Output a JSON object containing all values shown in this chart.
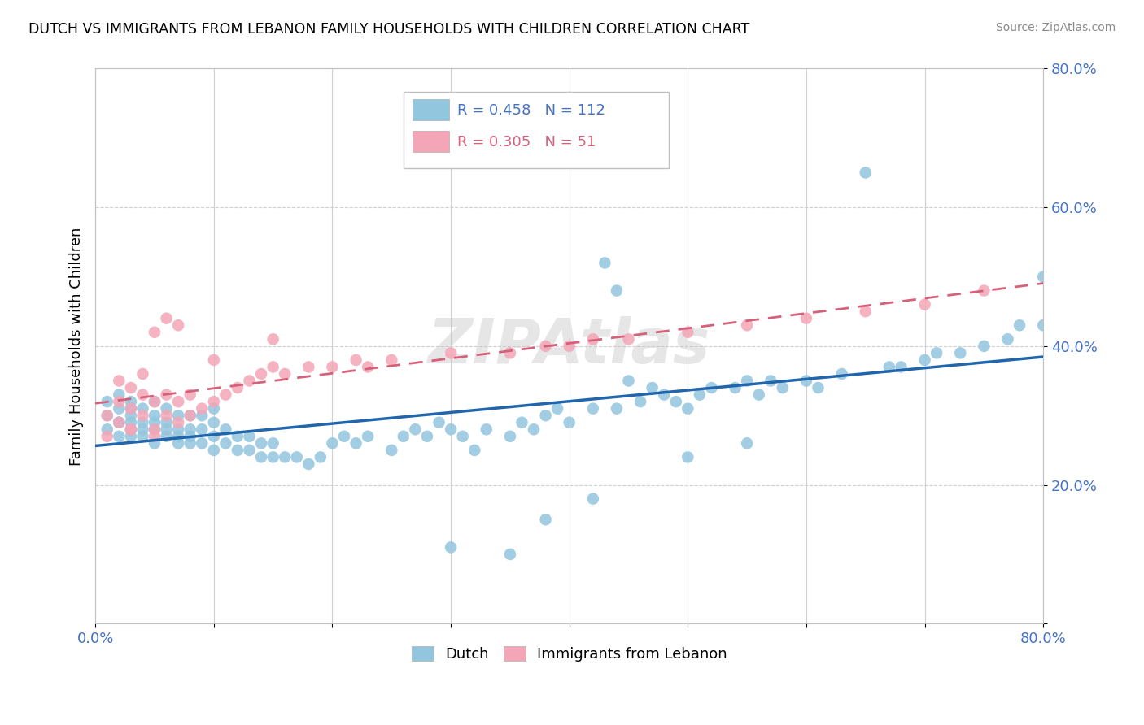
{
  "title": "DUTCH VS IMMIGRANTS FROM LEBANON FAMILY HOUSEHOLDS WITH CHILDREN CORRELATION CHART",
  "source": "Source: ZipAtlas.com",
  "ylabel": "Family Households with Children",
  "xlim": [
    0.0,
    0.8
  ],
  "ylim": [
    0.0,
    0.8
  ],
  "xtick_positions": [
    0.0,
    0.1,
    0.2,
    0.3,
    0.4,
    0.5,
    0.6,
    0.7,
    0.8
  ],
  "xtick_labels": [
    "0.0%",
    "",
    "",
    "",
    "",
    "",
    "",
    "",
    "80.0%"
  ],
  "ytick_positions": [
    0.0,
    0.2,
    0.4,
    0.6,
    0.8
  ],
  "ytick_labels": [
    "",
    "20.0%",
    "40.0%",
    "60.0%",
    "80.0%"
  ],
  "legend_dutch_R": 0.458,
  "legend_dutch_N": 112,
  "legend_lebanon_R": 0.305,
  "legend_lebanon_N": 51,
  "dutch_color": "#92c5de",
  "lebanon_color": "#f4a6b8",
  "dutch_line_color": "#2166ac",
  "lebanon_line_color": "#d6607a",
  "watermark": "ZIPAtlas",
  "dutch_x": [
    0.01,
    0.01,
    0.01,
    0.02,
    0.02,
    0.02,
    0.02,
    0.02,
    0.03,
    0.03,
    0.03,
    0.03,
    0.03,
    0.03,
    0.04,
    0.04,
    0.04,
    0.04,
    0.05,
    0.05,
    0.05,
    0.05,
    0.05,
    0.06,
    0.06,
    0.06,
    0.06,
    0.07,
    0.07,
    0.07,
    0.07,
    0.08,
    0.08,
    0.08,
    0.08,
    0.09,
    0.09,
    0.09,
    0.1,
    0.1,
    0.1,
    0.1,
    0.11,
    0.11,
    0.12,
    0.12,
    0.13,
    0.13,
    0.14,
    0.14,
    0.15,
    0.15,
    0.16,
    0.17,
    0.18,
    0.19,
    0.2,
    0.21,
    0.22,
    0.23,
    0.25,
    0.26,
    0.27,
    0.28,
    0.29,
    0.3,
    0.31,
    0.32,
    0.33,
    0.35,
    0.36,
    0.37,
    0.38,
    0.39,
    0.4,
    0.42,
    0.44,
    0.45,
    0.46,
    0.47,
    0.48,
    0.49,
    0.5,
    0.51,
    0.52,
    0.54,
    0.55,
    0.56,
    0.57,
    0.58,
    0.6,
    0.61,
    0.63,
    0.65,
    0.67,
    0.68,
    0.7,
    0.71,
    0.73,
    0.75,
    0.77,
    0.78,
    0.8,
    0.8,
    0.43,
    0.44,
    0.5,
    0.55,
    0.42,
    0.3,
    0.35,
    0.38
  ],
  "dutch_y": [
    0.28,
    0.3,
    0.32,
    0.27,
    0.29,
    0.31,
    0.33,
    0.29,
    0.27,
    0.29,
    0.31,
    0.28,
    0.3,
    0.32,
    0.27,
    0.29,
    0.31,
    0.28,
    0.26,
    0.28,
    0.3,
    0.32,
    0.29,
    0.27,
    0.29,
    0.31,
    0.28,
    0.26,
    0.28,
    0.3,
    0.27,
    0.26,
    0.28,
    0.3,
    0.27,
    0.26,
    0.28,
    0.3,
    0.25,
    0.27,
    0.29,
    0.31,
    0.26,
    0.28,
    0.25,
    0.27,
    0.25,
    0.27,
    0.24,
    0.26,
    0.24,
    0.26,
    0.24,
    0.24,
    0.23,
    0.24,
    0.26,
    0.27,
    0.26,
    0.27,
    0.25,
    0.27,
    0.28,
    0.27,
    0.29,
    0.28,
    0.27,
    0.25,
    0.28,
    0.27,
    0.29,
    0.28,
    0.3,
    0.31,
    0.29,
    0.31,
    0.31,
    0.35,
    0.32,
    0.34,
    0.33,
    0.32,
    0.31,
    0.33,
    0.34,
    0.34,
    0.35,
    0.33,
    0.35,
    0.34,
    0.35,
    0.34,
    0.36,
    0.65,
    0.37,
    0.37,
    0.38,
    0.39,
    0.39,
    0.4,
    0.41,
    0.43,
    0.43,
    0.5,
    0.52,
    0.48,
    0.24,
    0.26,
    0.18,
    0.11,
    0.1,
    0.15
  ],
  "lebanon_x": [
    0.01,
    0.01,
    0.02,
    0.02,
    0.02,
    0.03,
    0.03,
    0.03,
    0.03,
    0.04,
    0.04,
    0.04,
    0.05,
    0.05,
    0.05,
    0.06,
    0.06,
    0.07,
    0.07,
    0.08,
    0.08,
    0.09,
    0.1,
    0.11,
    0.12,
    0.13,
    0.14,
    0.15,
    0.16,
    0.18,
    0.2,
    0.22,
    0.23,
    0.25,
    0.3,
    0.35,
    0.38,
    0.4,
    0.42,
    0.45,
    0.5,
    0.55,
    0.6,
    0.65,
    0.7,
    0.75,
    0.05,
    0.06,
    0.07,
    0.1,
    0.15
  ],
  "lebanon_y": [
    0.27,
    0.3,
    0.29,
    0.32,
    0.35,
    0.28,
    0.31,
    0.34,
    0.28,
    0.3,
    0.33,
    0.36,
    0.28,
    0.32,
    0.27,
    0.3,
    0.33,
    0.29,
    0.32,
    0.3,
    0.33,
    0.31,
    0.32,
    0.33,
    0.34,
    0.35,
    0.36,
    0.37,
    0.36,
    0.37,
    0.37,
    0.38,
    0.37,
    0.38,
    0.39,
    0.39,
    0.4,
    0.4,
    0.41,
    0.41,
    0.42,
    0.43,
    0.44,
    0.45,
    0.46,
    0.48,
    0.42,
    0.44,
    0.43,
    0.38,
    0.41
  ]
}
